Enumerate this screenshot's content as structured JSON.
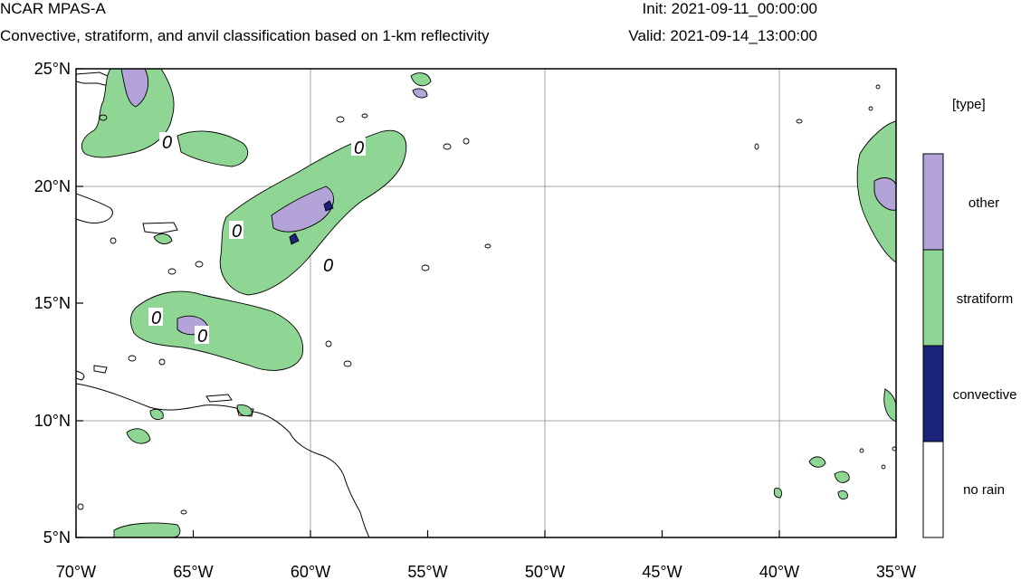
{
  "header": {
    "model": "NCAR MPAS-A",
    "subtitle": "Convective, stratiform, and anvil classification based on 1-km reflectivity",
    "init": "Init: 2021-09-11_00:00:00",
    "valid": "Valid: 2021-09-14_13:00:00"
  },
  "axes": {
    "lon_ticks": [
      "70°W",
      "65°W",
      "60°W",
      "55°W",
      "50°W",
      "45°W",
      "40°W",
      "35°W"
    ],
    "lat_ticks": [
      "25°N",
      "20°N",
      "15°N",
      "10°N",
      "5°N"
    ],
    "lon_range": [
      -70,
      -35
    ],
    "lat_range": [
      5,
      25
    ]
  },
  "colorbar": {
    "unit_label": "[type]",
    "categories": [
      {
        "label": "other",
        "color": "#b3a3d9"
      },
      {
        "label": "stratiform",
        "color": "#8fd694"
      },
      {
        "label": "convective",
        "color": "#1a237a"
      },
      {
        "label": "no rain",
        "color": "#ffffff"
      }
    ]
  },
  "contour_labels": [
    "0",
    "0",
    "0",
    "0",
    "0",
    "0"
  ],
  "colors": {
    "stratiform": "#8fd694",
    "other": "#b3a3d9",
    "convective": "#1a237a"
  }
}
